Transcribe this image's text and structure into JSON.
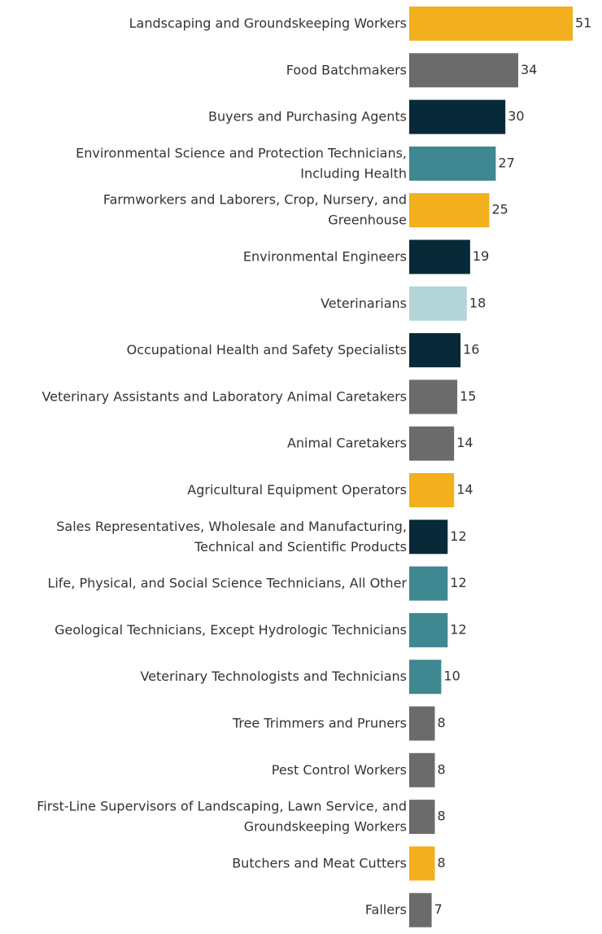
{
  "chart_data": {
    "type": "bar",
    "orientation": "horizontal",
    "title": "",
    "xlabel": "",
    "ylabel": "",
    "xlim": [
      0,
      51
    ],
    "grid": false,
    "colors": {
      "gold": "#f2b01e",
      "gray": "#6b6b6b",
      "navy": "#082a38",
      "teal": "#3f8791",
      "light_blue": "#b3d5d8"
    },
    "bars": [
      {
        "label": [
          "Landscaping and Groundskeeping Workers"
        ],
        "value": 51,
        "color": "#f2b01e"
      },
      {
        "label": [
          "Food Batchmakers"
        ],
        "value": 34,
        "color": "#6b6b6b"
      },
      {
        "label": [
          "Buyers and Purchasing Agents"
        ],
        "value": 30,
        "color": "#082a38"
      },
      {
        "label": [
          "Environmental Science and Protection Technicians,",
          "Including Health"
        ],
        "value": 27,
        "color": "#3f8791"
      },
      {
        "label": [
          "Farmworkers and Laborers, Crop, Nursery, and",
          "Greenhouse"
        ],
        "value": 25,
        "color": "#f2b01e"
      },
      {
        "label": [
          "Environmental Engineers"
        ],
        "value": 19,
        "color": "#082a38"
      },
      {
        "label": [
          "Veterinarians"
        ],
        "value": 18,
        "color": "#b3d5d8"
      },
      {
        "label": [
          "Occupational Health and Safety Specialists"
        ],
        "value": 16,
        "color": "#082a38"
      },
      {
        "label": [
          "Veterinary Assistants and Laboratory Animal Caretakers"
        ],
        "value": 15,
        "color": "#6b6b6b"
      },
      {
        "label": [
          "Animal Caretakers"
        ],
        "value": 14,
        "color": "#6b6b6b"
      },
      {
        "label": [
          "Agricultural Equipment Operators"
        ],
        "value": 14,
        "color": "#f2b01e"
      },
      {
        "label": [
          "Sales Representatives, Wholesale and Manufacturing,",
          "Technical and Scientific Products"
        ],
        "value": 12,
        "color": "#082a38"
      },
      {
        "label": [
          "Life, Physical, and Social Science Technicians, All Other"
        ],
        "value": 12,
        "color": "#3f8791"
      },
      {
        "label": [
          "Geological Technicians, Except Hydrologic Technicians"
        ],
        "value": 12,
        "color": "#3f8791"
      },
      {
        "label": [
          "Veterinary Technologists and Technicians"
        ],
        "value": 10,
        "color": "#3f8791"
      },
      {
        "label": [
          "Tree Trimmers and Pruners"
        ],
        "value": 8,
        "color": "#6b6b6b"
      },
      {
        "label": [
          "Pest Control Workers"
        ],
        "value": 8,
        "color": "#6b6b6b"
      },
      {
        "label": [
          "First-Line Supervisors of Landscaping, Lawn Service, and",
          "Groundskeeping Workers"
        ],
        "value": 8,
        "color": "#6b6b6b"
      },
      {
        "label": [
          "Butchers and Meat Cutters"
        ],
        "value": 8,
        "color": "#f2b01e"
      },
      {
        "label": [
          "Fallers"
        ],
        "value": 7,
        "color": "#6b6b6b"
      }
    ]
  }
}
